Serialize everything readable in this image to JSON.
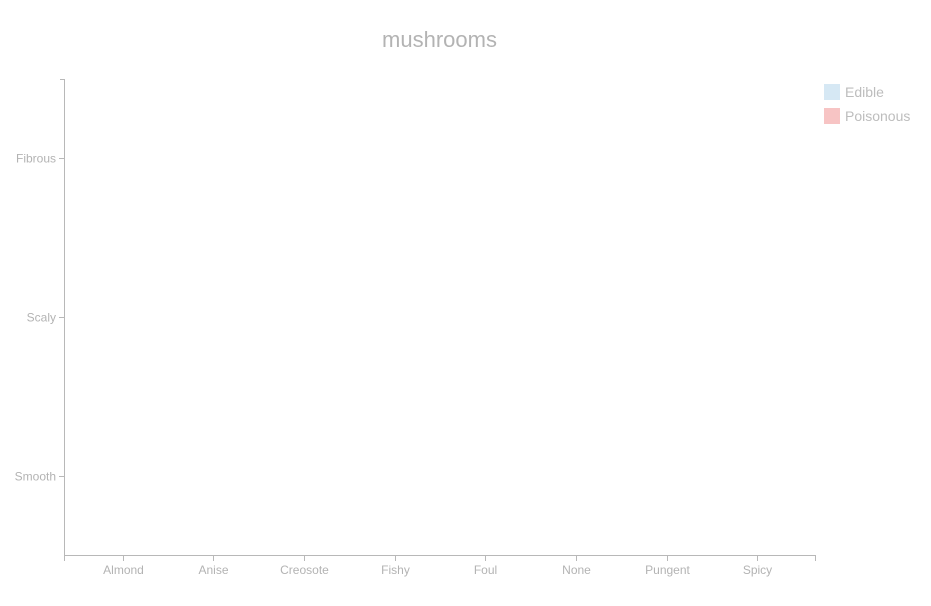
{
  "chart_data": {
    "type": "heatmap",
    "title": "mushrooms",
    "xlabel": "",
    "ylabel": "",
    "x_categories": [
      "Almond",
      "Anise",
      "Creosote",
      "Fishy",
      "Foul",
      "None",
      "Pungent",
      "Spicy"
    ],
    "y_categories": [
      "Fibrous",
      "Scaly",
      "Smooth"
    ],
    "series": [
      {
        "name": "Edible",
        "color": "#d6e8f4",
        "values": []
      },
      {
        "name": "Poisonous",
        "color": "#f7c4c4",
        "values": []
      }
    ],
    "grid": false,
    "legend_position": "top-right"
  }
}
